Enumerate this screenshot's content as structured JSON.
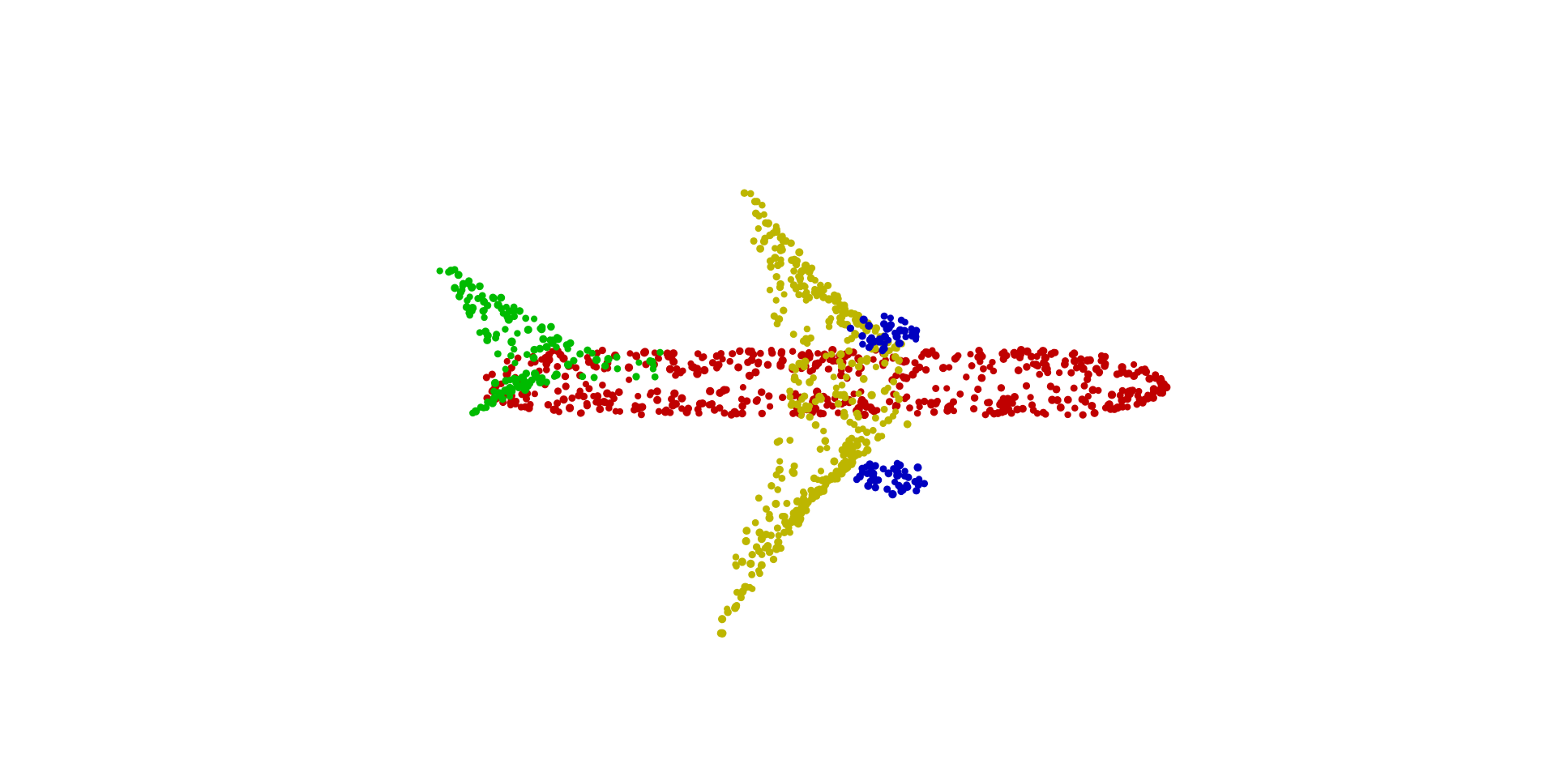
{
  "scene": {
    "background": "#ffffff",
    "subject": "airplane-point-cloud",
    "parts": [
      {
        "name": "fuselage",
        "color": "#c00000",
        "point_count": 560
      },
      {
        "name": "wings",
        "color": "#bdb600",
        "point_count": 420
      },
      {
        "name": "tail",
        "color": "#00bb00",
        "point_count": 150
      },
      {
        "name": "engines",
        "color": "#0000c0",
        "point_count": 90
      }
    ]
  }
}
